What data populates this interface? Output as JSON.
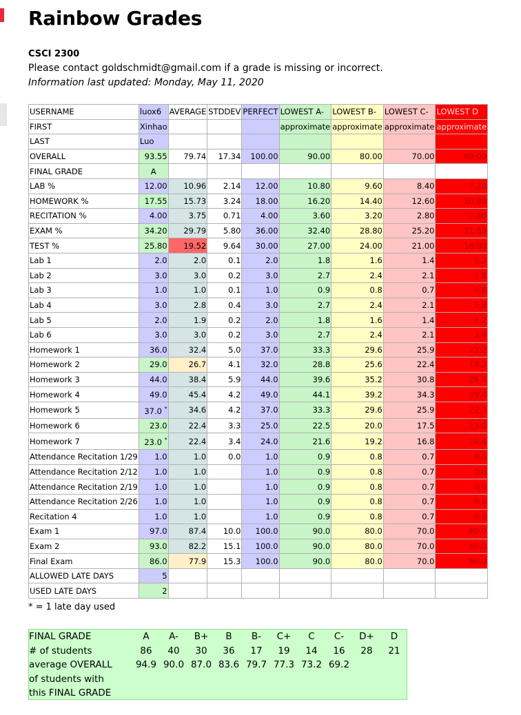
{
  "title": "Rainbow Grades",
  "course": "CSCI 2300",
  "contact": "Please contact goldschmidt@gmail.com if a grade is missing or incorrect.",
  "updated": "Information last updated: Monday, May 11, 2020",
  "header_rows": {
    "username": [
      "USERNAME",
      "luox6",
      "AVERAGE",
      "STDDEV",
      "PERFECT",
      "LOWEST A-",
      "LOWEST B-",
      "LOWEST C-",
      "LOWEST D"
    ],
    "first": [
      "FIRST",
      "Xinhao",
      "",
      "",
      "",
      "approximate",
      "approximate",
      "approximate",
      "approximate"
    ],
    "last": [
      "LAST",
      "Luo",
      "",
      "",
      "",
      "",
      "",
      "",
      ""
    ]
  },
  "rows": [
    {
      "label": "OVERALL",
      "v": [
        "93.55",
        "79.74",
        "17.34",
        "100.00",
        "90.00",
        "80.00",
        "70.00",
        "60.00"
      ],
      "shade": "a",
      "mshade": ""
    },
    {
      "label": "FINAL GRADE",
      "v": [
        "A",
        "",
        "",
        "",
        "",
        "",
        "",
        ""
      ],
      "shade": "a",
      "mshade": "",
      "blank": true
    },
    {
      "label": "LAB %",
      "v": [
        "12.00",
        "10.96",
        "2.14",
        "12.00",
        "10.80",
        "9.60",
        "8.40",
        "7.20"
      ],
      "shade": "u",
      "mshade": "m"
    },
    {
      "label": "HOMEWORK %",
      "v": [
        "17.55",
        "15.73",
        "3.24",
        "18.00",
        "16.20",
        "14.40",
        "12.60",
        "10.80"
      ],
      "shade": "a",
      "mshade": "m"
    },
    {
      "label": "RECITATION %",
      "v": [
        "4.00",
        "3.75",
        "0.71",
        "4.00",
        "3.60",
        "3.20",
        "2.80",
        "2.40"
      ],
      "shade": "u",
      "mshade": "m"
    },
    {
      "label": "EXAM %",
      "v": [
        "34.20",
        "29.79",
        "5.80",
        "36.00",
        "32.40",
        "28.80",
        "25.20",
        "21.60"
      ],
      "shade": "a",
      "mshade": "m"
    },
    {
      "label": "TEST %",
      "v": [
        "25.80",
        "19.52",
        "9.64",
        "30.00",
        "27.00",
        "24.00",
        "21.00",
        "18.00"
      ],
      "shade": "a",
      "mshade": "d"
    },
    {
      "label": "Lab 1",
      "v": [
        "2.0",
        "2.0",
        "0.1",
        "2.0",
        "1.8",
        "1.6",
        "1.4",
        "1.2"
      ],
      "shade": "u",
      "mshade": "m",
      "sep": true
    },
    {
      "label": "Lab 2",
      "v": [
        "3.0",
        "3.0",
        "0.2",
        "3.0",
        "2.7",
        "2.4",
        "2.1",
        "1.8"
      ],
      "shade": "u",
      "mshade": "m"
    },
    {
      "label": "Lab 3",
      "v": [
        "1.0",
        "1.0",
        "0.1",
        "1.0",
        "0.9",
        "0.8",
        "0.7",
        "0.6"
      ],
      "shade": "u",
      "mshade": "m"
    },
    {
      "label": "Lab 4",
      "v": [
        "3.0",
        "2.8",
        "0.4",
        "3.0",
        "2.7",
        "2.4",
        "2.1",
        "1.8"
      ],
      "shade": "u",
      "mshade": "m"
    },
    {
      "label": "Lab 5",
      "v": [
        "2.0",
        "1.9",
        "0.2",
        "2.0",
        "1.8",
        "1.6",
        "1.4",
        "1.2"
      ],
      "shade": "u",
      "mshade": "m"
    },
    {
      "label": "Lab 6",
      "v": [
        "3.0",
        "3.0",
        "0.2",
        "3.0",
        "2.7",
        "2.4",
        "2.1",
        "1.8"
      ],
      "shade": "u",
      "mshade": "m"
    },
    {
      "label": "Homework 1",
      "v": [
        "36.0",
        "32.4",
        "5.0",
        "37.0",
        "33.3",
        "29.6",
        "25.9",
        "22.2"
      ],
      "shade": "u",
      "mshade": "m",
      "sep": true
    },
    {
      "label": "Homework 2",
      "v": [
        "29.0",
        "26.7",
        "4.1",
        "32.0",
        "28.8",
        "25.6",
        "22.4",
        "19.2"
      ],
      "shade": "a",
      "mshade": "m2"
    },
    {
      "label": "Homework 3",
      "v": [
        "44.0",
        "38.4",
        "5.9",
        "44.0",
        "39.6",
        "35.2",
        "30.8",
        "26.4"
      ],
      "shade": "u",
      "mshade": "m"
    },
    {
      "label": "Homework 4",
      "v": [
        "49.0",
        "45.4",
        "4.2",
        "49.0",
        "44.1",
        "39.2",
        "34.3",
        "29.4"
      ],
      "shade": "u",
      "mshade": "m"
    },
    {
      "label": "Homework 5",
      "v": [
        "37.0",
        "34.6",
        "4.2",
        "37.0",
        "33.3",
        "29.6",
        "25.9",
        "22.2"
      ],
      "shade": "u",
      "mshade": "m",
      "star": true
    },
    {
      "label": "Homework 6",
      "v": [
        "23.0",
        "22.4",
        "3.3",
        "25.0",
        "22.5",
        "20.0",
        "17.5",
        "15.0"
      ],
      "shade": "a",
      "mshade": "m"
    },
    {
      "label": "Homework 7",
      "v": [
        "23.0",
        "22.4",
        "3.4",
        "24.0",
        "21.6",
        "19.2",
        "16.8",
        "14.4"
      ],
      "shade": "a",
      "mshade": "m",
      "star": true
    },
    {
      "label": "Attendance Recitation 1/29",
      "v": [
        "1.0",
        "1.0",
        "0.0",
        "1.0",
        "0.9",
        "0.8",
        "0.7",
        "0.6"
      ],
      "shade": "u",
      "mshade": "m",
      "sep": true
    },
    {
      "label": "Attendance Recitation 2/12",
      "v": [
        "1.0",
        "1.0",
        "",
        "1.0",
        "0.9",
        "0.8",
        "0.7",
        "0.6"
      ],
      "shade": "u",
      "mshade": "m"
    },
    {
      "label": "Attendance Recitation 2/19",
      "v": [
        "1.0",
        "1.0",
        "",
        "1.0",
        "0.9",
        "0.8",
        "0.7",
        "0.6"
      ],
      "shade": "u",
      "mshade": "m"
    },
    {
      "label": "Attendance Recitation 2/26",
      "v": [
        "1.0",
        "1.0",
        "",
        "1.0",
        "0.9",
        "0.8",
        "0.7",
        "0.6"
      ],
      "shade": "u",
      "mshade": "m"
    },
    {
      "label": "Recitation 4",
      "v": [
        "1.0",
        "1.0",
        "",
        "1.0",
        "0.9",
        "0.8",
        "0.7",
        "0.6"
      ],
      "shade": "u",
      "mshade": "m"
    },
    {
      "label": "Exam 1",
      "v": [
        "97.0",
        "87.4",
        "10.0",
        "100.0",
        "90.0",
        "80.0",
        "70.0",
        "60.0"
      ],
      "shade": "u",
      "mshade": "m",
      "sep": true
    },
    {
      "label": "Exam 2",
      "v": [
        "93.0",
        "82.2",
        "15.1",
        "100.0",
        "90.0",
        "80.0",
        "70.0",
        "60.0"
      ],
      "shade": "a",
      "mshade": "m"
    },
    {
      "label": "Final Exam",
      "v": [
        "86.0",
        "77.9",
        "15.3",
        "100.0",
        "90.0",
        "80.0",
        "70.0",
        "60.0"
      ],
      "shade": "a",
      "mshade": "m2"
    },
    {
      "label": "ALLOWED LATE DAYS",
      "v": [
        "5",
        "",
        "",
        "",
        "",
        "",
        "",
        ""
      ],
      "shade": "u",
      "mshade": "",
      "blank": true,
      "sep": true
    },
    {
      "label": "USED LATE DAYS",
      "v": [
        "2",
        "",
        "",
        "",
        "",
        "",
        "",
        ""
      ],
      "shade": "a",
      "mshade": "",
      "blank": true
    }
  ],
  "star_symbol": "*",
  "late_note": "* = 1 late day used",
  "summary": {
    "row_labels": [
      "FINAL GRADE",
      "# of students",
      "average OVERALL",
      "of students with",
      "this FINAL GRADE"
    ],
    "grades": [
      "A",
      "A-",
      "B+",
      "B",
      "B-",
      "C+",
      "C",
      "C-",
      "D+",
      "D"
    ],
    "counts": [
      "86",
      "40",
      "30",
      "36",
      "17",
      "19",
      "14",
      "16",
      "28",
      "21"
    ],
    "averages": [
      "94.9",
      "90.0",
      "87.0",
      "83.6",
      "79.7",
      "77.3",
      "73.2",
      "69.2",
      "",
      ""
    ]
  },
  "colors": {
    "perfect": "#ccccff",
    "a": "#c7f5c7",
    "b": "#ffffc4",
    "c": "#ffc4c4",
    "d": "#ff0000"
  }
}
